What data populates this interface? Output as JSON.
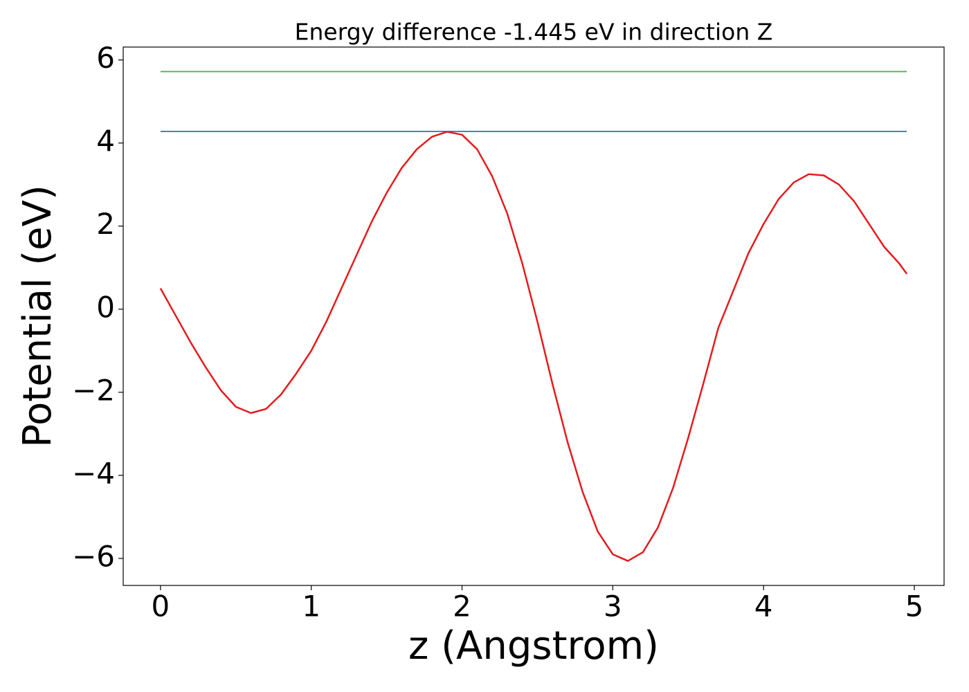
{
  "chart_data": {
    "type": "line",
    "title": "Energy difference -1.445 eV in direction Z",
    "xlabel": "z (Angstrom)",
    "ylabel": "Potential (eV)",
    "xlim": [
      -0.2475,
      5.1975
    ],
    "ylim": [
      -6.65,
      6.31
    ],
    "xticks": [
      0,
      1,
      2,
      3,
      4,
      5
    ],
    "yticks": [
      {
        "value": -6,
        "label": "−6"
      },
      {
        "value": -4,
        "label": "−4"
      },
      {
        "value": -2,
        "label": "−2"
      },
      0,
      2,
      4,
      6
    ],
    "grid": false,
    "series": [
      {
        "color": "#e41a1c",
        "x": [
          0,
          0.1,
          0.2,
          0.3,
          0.4,
          0.5,
          0.6,
          0.7,
          0.8,
          0.9,
          1.0,
          1.1,
          1.2,
          1.3,
          1.4,
          1.5,
          1.6,
          1.7,
          1.8,
          1.9,
          2.0,
          2.1,
          2.2,
          2.3,
          2.4,
          2.5,
          2.6,
          2.7,
          2.8,
          2.9,
          3.0,
          3.1,
          3.2,
          3.3,
          3.4,
          3.5,
          3.6,
          3.7,
          3.8,
          3.9,
          4.0,
          4.1,
          4.2,
          4.3,
          4.4,
          4.5,
          4.6,
          4.7,
          4.8,
          4.9,
          4.95
        ],
        "values": [
          0.5,
          -0.15,
          -0.8,
          -1.4,
          -1.95,
          -2.35,
          -2.5,
          -2.4,
          -2.05,
          -1.55,
          -1.0,
          -0.3,
          0.5,
          1.3,
          2.1,
          2.8,
          3.4,
          3.85,
          4.15,
          4.27,
          4.2,
          3.85,
          3.2,
          2.3,
          1.1,
          -0.3,
          -1.8,
          -3.2,
          -4.4,
          -5.35,
          -5.9,
          -6.06,
          -5.85,
          -5.25,
          -4.3,
          -3.1,
          -1.8,
          -0.45,
          0.45,
          1.35,
          2.05,
          2.65,
          3.05,
          3.25,
          3.22,
          3.0,
          2.6,
          2.05,
          1.5,
          1.1,
          0.85
        ]
      },
      {
        "color": "#1f77b4",
        "x": [
          0,
          4.95
        ],
        "values": [
          4.28,
          4.28
        ]
      },
      {
        "color": "#4daf4a",
        "x": [
          0,
          4.95
        ],
        "values": [
          5.72,
          5.72
        ]
      }
    ]
  }
}
